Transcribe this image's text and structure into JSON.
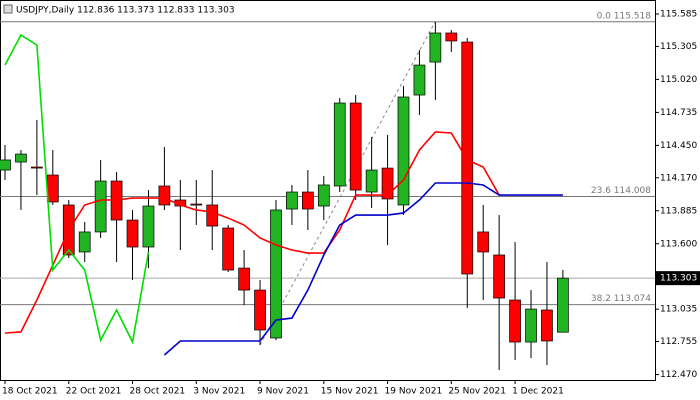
{
  "chart_data": {
    "type": "candlestick",
    "title": "USDJPY,Daily  112.836 113.373 112.833 113.303",
    "categories": [
      "18 Oct 2021",
      null,
      null,
      null,
      "22 Oct 2021",
      null,
      null,
      null,
      "28 Oct 2021",
      null,
      null,
      null,
      "3 Nov 2021",
      null,
      null,
      null,
      "9 Nov 2021",
      null,
      null,
      null,
      "15 Nov 2021",
      null,
      null,
      null,
      "19 Nov 2021",
      null,
      null,
      null,
      "25 Nov 2021",
      null,
      null,
      null,
      "1 Dec 2021",
      null,
      null,
      null
    ],
    "open": [
      114.237,
      114.306,
      114.263,
      114.194,
      113.935,
      113.529,
      113.702,
      114.142,
      113.805,
      113.572,
      114.099,
      113.978,
      113.943,
      113.935,
      113.736,
      113.39,
      113.2,
      112.786,
      113.9,
      114.047,
      113.926,
      114.099,
      114.816,
      114.047,
      114.254,
      113.935,
      114.885,
      115.17,
      115.421,
      115.343,
      113.702,
      113.503,
      113.114,
      112.751,
      113.028,
      112.836
    ],
    "high": [
      114.453,
      114.41,
      114.669,
      114.41,
      113.978,
      113.788,
      114.324,
      114.22,
      113.892,
      114.064,
      114.436,
      114.151,
      114.151,
      114.237,
      113.762,
      113.546,
      113.287,
      113.978,
      114.108,
      114.237,
      114.185,
      114.859,
      114.885,
      114.522,
      114.54,
      114.963,
      115.274,
      115.516,
      115.447,
      115.378,
      113.935,
      113.848,
      113.615,
      113.2,
      113.442,
      113.373
    ],
    "low": [
      114.151,
      113.892,
      114.021,
      113.935,
      113.477,
      113.442,
      113.65,
      113.442,
      113.287,
      113.39,
      113.892,
      113.546,
      113.762,
      113.546,
      113.356,
      113.071,
      112.725,
      112.768,
      113.762,
      113.719,
      113.805,
      114.047,
      113.978,
      113.909,
      113.589,
      113.848,
      114.712,
      114.842,
      115.257,
      113.045,
      113.114,
      112.509,
      112.596,
      112.613,
      112.552,
      112.833
    ],
    "close": [
      114.324,
      114.375,
      114.254,
      113.961,
      113.503,
      113.702,
      114.142,
      113.805,
      113.572,
      113.926,
      113.935,
      113.926,
      113.935,
      113.753,
      113.373,
      113.2,
      112.855,
      113.892,
      114.047,
      113.9,
      114.108,
      114.816,
      114.064,
      114.237,
      113.987,
      114.868,
      115.144,
      115.421,
      115.352,
      113.339,
      113.529,
      113.131,
      112.751,
      113.036,
      112.76,
      113.303
    ],
    "up_color": "#22b422",
    "down_color": "#ff0000",
    "lines": [
      {
        "color": "#ff0000",
        "values": [
          112.829,
          112.838,
          113.114,
          113.416,
          113.719,
          113.935,
          113.978,
          113.978,
          113.995,
          113.995,
          113.995,
          113.935,
          113.892,
          113.874,
          113.822,
          113.762,
          113.65,
          113.589,
          113.546,
          113.52,
          113.52,
          113.719,
          114.021,
          114.021,
          114.021,
          114.151,
          114.41,
          114.566,
          114.557,
          114.324,
          114.263,
          114.021,
          null,
          null,
          null,
          null
        ]
      },
      {
        "color": "#0000cc",
        "values": [
          null,
          null,
          null,
          null,
          null,
          null,
          null,
          null,
          null,
          null,
          112.639,
          112.76,
          112.76,
          112.76,
          112.76,
          112.76,
          112.76,
          112.941,
          112.958,
          113.2,
          113.503,
          113.762,
          113.848,
          113.848,
          113.848,
          113.866,
          113.978,
          114.125,
          114.125,
          114.125,
          114.108,
          114.021,
          114.021,
          114.021,
          114.021,
          114.021
        ]
      },
      {
        "color": "#00dd00",
        "values": [
          115.144,
          115.404,
          115.317,
          113.373,
          113.546,
          113.373,
          112.768,
          113.028,
          112.751,
          113.529,
          null,
          null,
          null,
          null,
          null,
          null,
          null,
          null,
          null,
          null,
          null,
          null,
          null,
          null,
          null,
          null,
          null,
          null,
          null,
          null,
          null,
          null,
          null,
          null,
          null,
          null
        ]
      }
    ],
    "levels": [
      {
        "label": "0.0 115.518",
        "value": 115.518
      },
      {
        "label": "23.6 114.008",
        "value": 114.008
      },
      {
        "label": "38.2 113.074",
        "value": 113.074
      }
    ],
    "current_price": 113.303,
    "ylim": [
      112.423,
      115.706
    ],
    "yticks": [
      115.585,
      115.305,
      {
        "value": 115.02,
        "label": "115.020"
      },
      114.735,
      {
        "value": 114.45,
        "label": "114.450"
      },
      {
        "value": 114.17,
        "label": "114.170"
      },
      113.885,
      {
        "value": 113.6,
        "label": "113.600"
      },
      113.035,
      112.755,
      {
        "value": 112.47,
        "label": "112.470"
      }
    ]
  }
}
